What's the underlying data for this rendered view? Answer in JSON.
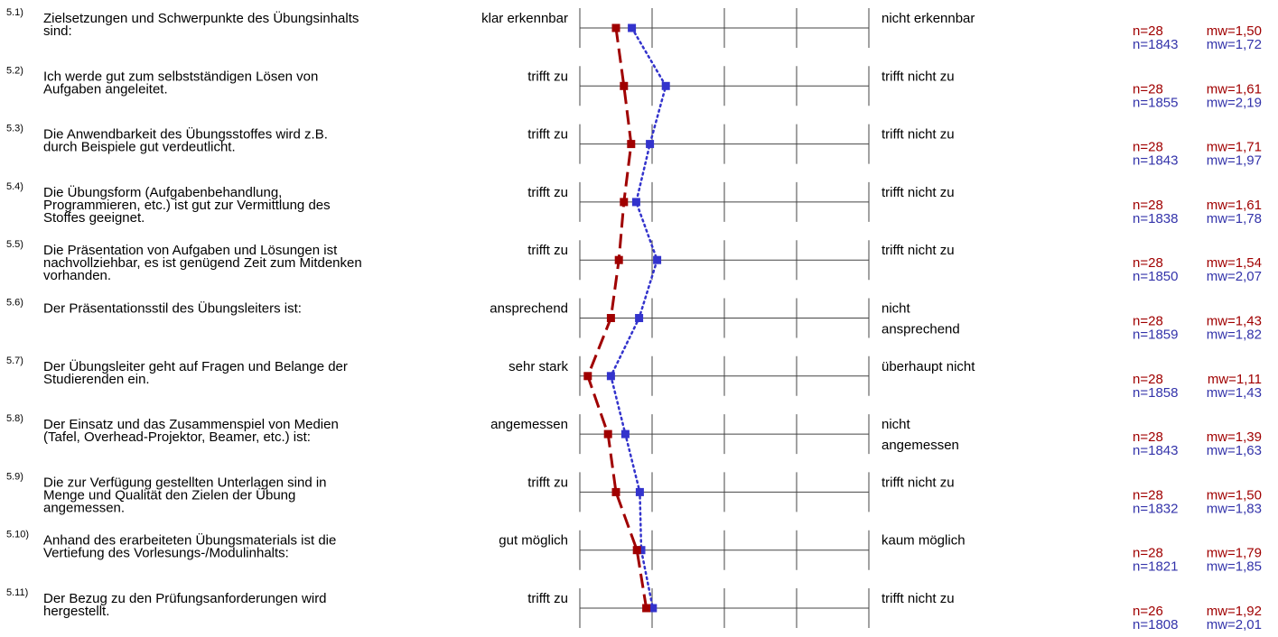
{
  "chart_data": {
    "type": "line",
    "scale": [
      1,
      5
    ],
    "colors": {
      "series_a": "#a00000",
      "series_b": "#3333cc"
    },
    "items": [
      {
        "num": "5.1)",
        "question": [
          "Zielsetzungen und Schwerpunkte des Übungsinhalts",
          "sind:"
        ],
        "left": [
          "klar erkennbar"
        ],
        "right": [
          "nicht erkennbar"
        ],
        "a_n": "n=28",
        "a_mw": "mw=1,50",
        "b_n": "n=1843",
        "b_mw": "mw=1,72",
        "a": 1.5,
        "b": 1.72
      },
      {
        "num": "5.2)",
        "question": [
          "Ich werde gut zum selbstständigen Lösen von",
          "Aufgaben angeleitet."
        ],
        "left": [
          "trifft zu"
        ],
        "right": [
          "trifft nicht zu"
        ],
        "a_n": "n=28",
        "a_mw": "mw=1,61",
        "b_n": "n=1855",
        "b_mw": "mw=2,19",
        "a": 1.61,
        "b": 2.19
      },
      {
        "num": "5.3)",
        "question": [
          "Die Anwendbarkeit des Übungsstoffes wird z.B.",
          "durch Beispiele gut verdeutlicht."
        ],
        "left": [
          "trifft zu"
        ],
        "right": [
          "trifft nicht zu"
        ],
        "a_n": "n=28",
        "a_mw": "mw=1,71",
        "b_n": "n=1843",
        "b_mw": "mw=1,97",
        "a": 1.71,
        "b": 1.97
      },
      {
        "num": "5.4)",
        "question": [
          "Die Übungsform (Aufgabenbehandlung,",
          "Programmieren, etc.) ist gut zur Vermittlung des",
          "Stoffes geeignet."
        ],
        "left": [
          "trifft zu"
        ],
        "right": [
          "trifft nicht zu"
        ],
        "a_n": "n=28",
        "a_mw": "mw=1,61",
        "b_n": "n=1838",
        "b_mw": "mw=1,78",
        "a": 1.61,
        "b": 1.78
      },
      {
        "num": "5.5)",
        "question": [
          "Die Präsentation von Aufgaben und Lösungen ist",
          "nachvollziehbar, es ist genügend Zeit zum Mitdenken",
          "vorhanden."
        ],
        "left": [
          "trifft zu"
        ],
        "right": [
          "trifft nicht zu"
        ],
        "a_n": "n=28",
        "a_mw": "mw=1,54",
        "b_n": "n=1850",
        "b_mw": "mw=2,07",
        "a": 1.54,
        "b": 2.07
      },
      {
        "num": "5.6)",
        "question": [
          "Der Präsentationsstil des Übungsleiters ist:"
        ],
        "left": [
          "ansprechend"
        ],
        "right": [
          "nicht",
          "ansprechend"
        ],
        "a_n": "n=28",
        "a_mw": "mw=1,43",
        "b_n": "n=1859",
        "b_mw": "mw=1,82",
        "a": 1.43,
        "b": 1.82
      },
      {
        "num": "5.7)",
        "question": [
          "Der Übungsleiter geht auf Fragen und Belange der",
          "Studierenden ein."
        ],
        "left": [
          "sehr stark"
        ],
        "right": [
          "überhaupt nicht"
        ],
        "a_n": "n=28",
        "a_mw": "mw=1,11",
        "b_n": "n=1858",
        "b_mw": "mw=1,43",
        "a": 1.11,
        "b": 1.43
      },
      {
        "num": "5.8)",
        "question": [
          "Der Einsatz und das Zusammenspiel von Medien",
          "(Tafel, Overhead-Projektor, Beamer, etc.) ist:"
        ],
        "left": [
          "angemessen"
        ],
        "right": [
          "nicht",
          "angemessen"
        ],
        "a_n": "n=28",
        "a_mw": "mw=1,39",
        "b_n": "n=1843",
        "b_mw": "mw=1,63",
        "a": 1.39,
        "b": 1.63
      },
      {
        "num": "5.9)",
        "question": [
          "Die zur Verfügung gestellten Unterlagen sind in",
          "Menge und Qualität den Zielen der Übung",
          "angemessen."
        ],
        "left": [
          "trifft zu"
        ],
        "right": [
          "trifft nicht zu"
        ],
        "a_n": "n=28",
        "a_mw": "mw=1,50",
        "b_n": "n=1832",
        "b_mw": "mw=1,83",
        "a": 1.5,
        "b": 1.83
      },
      {
        "num": "5.10)",
        "question": [
          "Anhand des erarbeiteten Übungsmaterials ist die",
          "Vertiefung des Vorlesungs-/Modulinhalts:"
        ],
        "left": [
          "gut möglich"
        ],
        "right": [
          "kaum möglich"
        ],
        "a_n": "n=28",
        "a_mw": "mw=1,79",
        "b_n": "n=1821",
        "b_mw": "mw=1,85",
        "a": 1.79,
        "b": 1.85
      },
      {
        "num": "5.11)",
        "question": [
          "Der Bezug zu den Prüfungsanforderungen wird",
          "hergestellt."
        ],
        "left": [
          "trifft zu"
        ],
        "right": [
          "trifft nicht zu"
        ],
        "a_n": "n=26",
        "a_mw": "mw=1,92",
        "b_n": "n=1808",
        "b_mw": "mw=2,01",
        "a": 1.92,
        "b": 2.01
      }
    ]
  }
}
